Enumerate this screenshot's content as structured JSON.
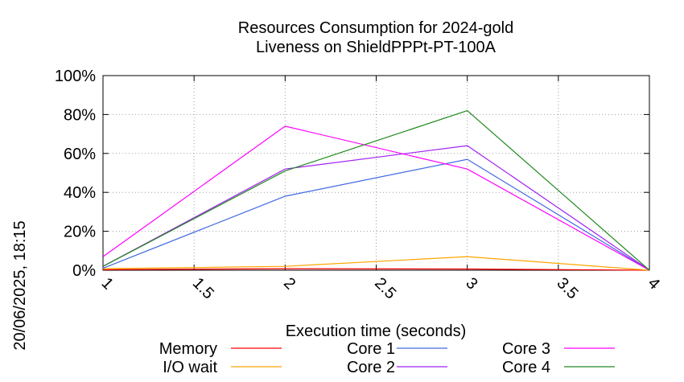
{
  "chart_data": {
    "type": "line",
    "title": "Resources Consumption for 2024-gold",
    "subtitle": "Liveness on ShieldPPPt-PT-100A",
    "xlabel": "Execution time (seconds)",
    "ylabel": "",
    "xlim": [
      1,
      4
    ],
    "ylim": [
      0,
      100
    ],
    "x_ticks": [
      "1",
      "1.5",
      "2",
      "2.5",
      "3",
      "3.5",
      "4"
    ],
    "y_ticks": [
      "0%",
      "20%",
      "40%",
      "60%",
      "80%",
      "100%"
    ],
    "grid": true,
    "legend_position": "bottom",
    "series": [
      {
        "name": "Memory",
        "color": "#ff0000",
        "x": [
          1,
          2,
          3,
          4
        ],
        "y": [
          0.3,
          0.8,
          0.6,
          0
        ]
      },
      {
        "name": "I/O wait",
        "color": "#ffa500",
        "x": [
          1,
          2,
          3,
          4
        ],
        "y": [
          0.8,
          2,
          7,
          0
        ]
      },
      {
        "name": "Core 1",
        "color": "#4169e1",
        "x": [
          1,
          2,
          3,
          4
        ],
        "y": [
          1,
          38,
          57,
          0
        ]
      },
      {
        "name": "Core 2",
        "color": "#a020f0",
        "x": [
          1,
          2,
          3,
          4
        ],
        "y": [
          2,
          52,
          64,
          0
        ]
      },
      {
        "name": "Core 3",
        "color": "#ff00ff",
        "x": [
          1,
          2,
          3,
          4
        ],
        "y": [
          7,
          74,
          52,
          0
        ]
      },
      {
        "name": "Core 4",
        "color": "#228b22",
        "x": [
          1,
          2,
          3,
          4
        ],
        "y": [
          2,
          51,
          82,
          0
        ]
      }
    ]
  },
  "side_text": "20/06/2025, 18:15"
}
